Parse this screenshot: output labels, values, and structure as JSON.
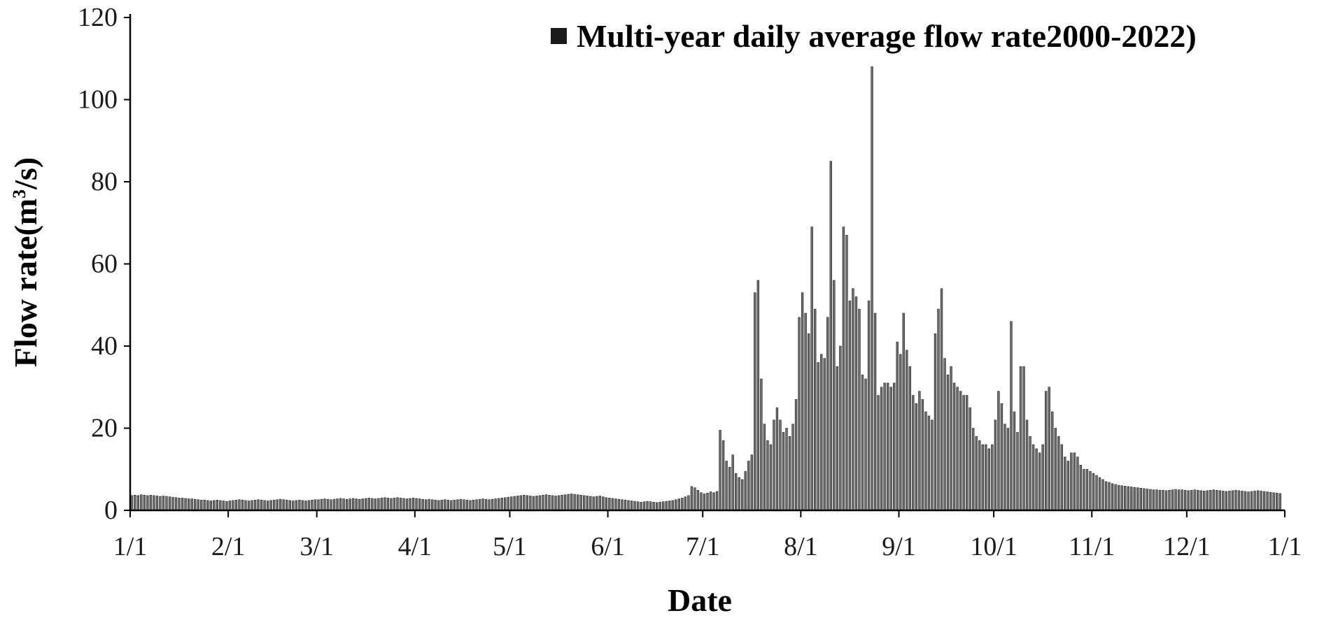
{
  "chart_data": {
    "type": "bar",
    "xlabel": "Date",
    "ylabel_prefix": "Flow rate(m",
    "ylabel_sup": "3",
    "ylabel_suffix": "/s)",
    "ylim": [
      0,
      120
    ],
    "yticks": [
      0,
      20,
      40,
      60,
      80,
      100,
      120
    ],
    "xlim": [
      "1/1",
      "next 1/1"
    ],
    "xtick_labels": [
      "1/1",
      "2/1",
      "3/1",
      "4/1",
      "5/1",
      "6/1",
      "7/1",
      "8/1",
      "9/1",
      "10/1",
      "11/1",
      "12/1",
      "1/1"
    ],
    "xtick_days": [
      0,
      31,
      59,
      90,
      120,
      151,
      181,
      212,
      243,
      273,
      304,
      334,
      365
    ],
    "grid": false,
    "legend_position": "top-right",
    "colors": {
      "bar": "#6e6e6e",
      "bar_edge": "#222222",
      "axis": "#000000",
      "legend_marker": "#1a1a1a"
    },
    "series": [
      {
        "name": "Multi-year daily average flow rate2000-2022)",
        "values": [
          3.6,
          3.7,
          3.6,
          3.8,
          3.7,
          3.6,
          3.7,
          3.6,
          3.5,
          3.4,
          3.5,
          3.4,
          3.3,
          3.2,
          3.1,
          3.0,
          3.0,
          2.9,
          2.8,
          2.8,
          2.7,
          2.6,
          2.5,
          2.5,
          2.4,
          2.3,
          2.4,
          2.5,
          2.4,
          2.3,
          2.2,
          2.3,
          2.4,
          2.5,
          2.6,
          2.5,
          2.4,
          2.3,
          2.4,
          2.5,
          2.6,
          2.5,
          2.4,
          2.3,
          2.4,
          2.5,
          2.6,
          2.7,
          2.6,
          2.5,
          2.4,
          2.3,
          2.4,
          2.5,
          2.4,
          2.3,
          2.4,
          2.5,
          2.6,
          2.6,
          2.7,
          2.8,
          2.7,
          2.6,
          2.7,
          2.8,
          2.9,
          2.8,
          2.7,
          2.8,
          2.9,
          2.8,
          2.7,
          2.8,
          2.9,
          3.0,
          2.9,
          2.8,
          2.9,
          3.0,
          3.1,
          3.0,
          2.9,
          3.0,
          3.1,
          3.0,
          2.9,
          2.8,
          2.9,
          3.0,
          2.9,
          2.8,
          2.7,
          2.6,
          2.7,
          2.6,
          2.5,
          2.4,
          2.5,
          2.6,
          2.5,
          2.4,
          2.5,
          2.6,
          2.7,
          2.6,
          2.5,
          2.4,
          2.5,
          2.6,
          2.7,
          2.8,
          2.7,
          2.6,
          2.7,
          2.8,
          2.9,
          3.0,
          3.1,
          3.2,
          3.3,
          3.4,
          3.5,
          3.6,
          3.7,
          3.6,
          3.5,
          3.4,
          3.5,
          3.6,
          3.7,
          3.8,
          3.7,
          3.6,
          3.5,
          3.6,
          3.7,
          3.8,
          3.9,
          4.0,
          3.9,
          3.8,
          3.7,
          3.6,
          3.5,
          3.4,
          3.3,
          3.4,
          3.5,
          3.3,
          3.1,
          3.0,
          2.9,
          2.8,
          2.7,
          2.6,
          2.5,
          2.4,
          2.3,
          2.2,
          2.1,
          2.0,
          2.1,
          2.2,
          2.1,
          2.0,
          1.9,
          2.0,
          2.1,
          2.2,
          2.3,
          2.4,
          2.6,
          2.8,
          3.0,
          3.3,
          3.6,
          5.8,
          5.5,
          4.9,
          4.3,
          4.0,
          4.2,
          4.5,
          4.3,
          4.6,
          19.5,
          17.0,
          12.0,
          10.5,
          13.5,
          9.0,
          8.0,
          7.5,
          9.5,
          12.0,
          13.5,
          53.0,
          56.0,
          32.0,
          21.0,
          17.0,
          16.0,
          22.0,
          25.0,
          22.0,
          19.0,
          20.0,
          18.0,
          21.0,
          27.0,
          47.0,
          53.0,
          48.0,
          43.0,
          69.0,
          49.0,
          36.0,
          38.0,
          37.0,
          47.0,
          85.0,
          56.0,
          35.0,
          40.0,
          69.0,
          67.0,
          51.0,
          54.0,
          52.0,
          49.0,
          33.0,
          32.0,
          51.0,
          108.0,
          48.0,
          28.0,
          30.0,
          31.0,
          31.0,
          30.0,
          31.0,
          41.0,
          38.0,
          48.0,
          39.0,
          35.0,
          28.0,
          26.0,
          29.0,
          27.0,
          24.0,
          23.0,
          22.0,
          43.0,
          49.0,
          54.0,
          37.0,
          33.0,
          35.0,
          31.0,
          30.0,
          29.0,
          28.0,
          28.0,
          25.0,
          20.0,
          18.0,
          17.0,
          16.0,
          16.0,
          15.0,
          16.0,
          22.0,
          29.0,
          26.0,
          21.0,
          20.0,
          46.0,
          24.0,
          19.0,
          35.0,
          35.0,
          22.0,
          18.0,
          16.0,
          15.0,
          14.0,
          16.0,
          29.0,
          30.0,
          24.0,
          20.0,
          18.0,
          16.0,
          13.0,
          12.0,
          14.0,
          14.0,
          13.0,
          11.0,
          10.0,
          10.0,
          9.5,
          9.0,
          8.5,
          8.0,
          7.5,
          7.0,
          6.8,
          6.5,
          6.3,
          6.1,
          6.0,
          5.9,
          5.8,
          5.7,
          5.6,
          5.5,
          5.4,
          5.3,
          5.2,
          5.1,
          5.0,
          5.0,
          4.9,
          4.9,
          4.8,
          4.9,
          5.0,
          5.1,
          5.0,
          5.0,
          4.9,
          4.8,
          4.9,
          5.0,
          4.9,
          4.8,
          4.7,
          4.8,
          4.9,
          5.0,
          4.9,
          4.8,
          4.7,
          4.6,
          4.7,
          4.8,
          4.9,
          4.8,
          4.7,
          4.6,
          4.5,
          4.6,
          4.7,
          4.8,
          4.7,
          4.6,
          4.5,
          4.4,
          4.3,
          4.2,
          4.1
        ]
      }
    ]
  }
}
